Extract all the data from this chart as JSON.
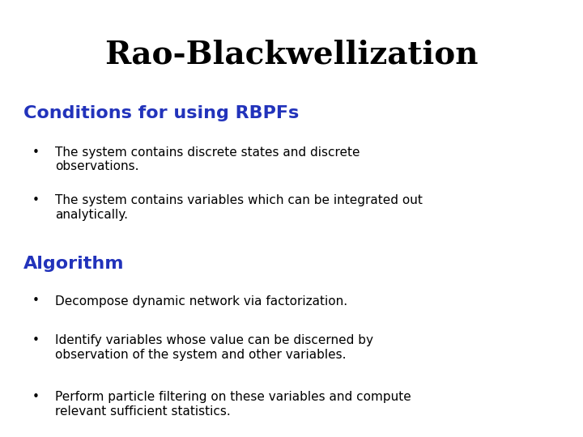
{
  "title": "Rao-Blackwellization",
  "title_color": "#000000",
  "title_fontsize": 28,
  "title_fontstyle": "bold",
  "title_font": "serif",
  "background_color": "#ffffff",
  "section1_heading": "Conditions for using RBPFs",
  "section1_color": "#2233bb",
  "section1_fontsize": 16,
  "section1_font": "sans-serif",
  "section1_bullets": [
    "The system contains discrete states and discrete\nobservations.",
    "The system contains variables which can be integrated out\nanalytically."
  ],
  "section2_heading": "Algorithm",
  "section2_color": "#2233bb",
  "section2_fontsize": 16,
  "section2_font": "sans-serif",
  "section2_bullets": [
    "Decompose dynamic network via factorization.",
    "Identify variables whose value can be discerned by\nobservation of the system and other variables.",
    "Perform particle filtering on these variables and compute\nrelevant sufficient statistics."
  ],
  "bullet_fontsize": 11,
  "bullet_color": "#000000",
  "bullet_font": "sans-serif",
  "bullet_char": "•"
}
